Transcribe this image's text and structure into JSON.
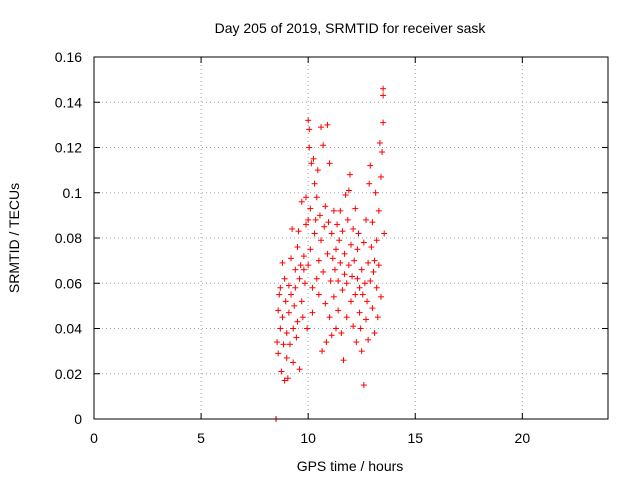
{
  "chart_data": {
    "type": "scatter",
    "title": "Day 205 of 2019, SRMTID for receiver sask",
    "xlabel": "GPS time / hours",
    "ylabel": "SRMTID / TECUs",
    "xlim": [
      0,
      24
    ],
    "ylim": [
      0,
      0.16
    ],
    "xticks": [
      0,
      5,
      10,
      15,
      20
    ],
    "yticks": [
      0,
      0.02,
      0.04,
      0.06,
      0.08,
      0.1,
      0.12,
      0.14,
      0.16
    ],
    "xtick_labels": [
      "0",
      "5",
      "10",
      "15",
      "20"
    ],
    "ytick_labels": [
      "0",
      "0.02",
      "0.04",
      "0.06",
      "0.08",
      "0.1",
      "0.12",
      "0.14",
      "0.16"
    ],
    "grid": true,
    "marker": "+",
    "color": "#ff0000",
    "series": [
      {
        "name": "SRMTID",
        "points": [
          [
            8.5,
            0.0
          ],
          [
            8.5,
            0.0
          ],
          [
            8.55,
            0.034
          ],
          [
            8.6,
            0.048
          ],
          [
            8.6,
            0.029
          ],
          [
            8.65,
            0.055
          ],
          [
            8.7,
            0.04
          ],
          [
            8.7,
            0.058
          ],
          [
            8.75,
            0.021
          ],
          [
            8.8,
            0.069
          ],
          [
            8.8,
            0.045
          ],
          [
            8.85,
            0.033
          ],
          [
            8.9,
            0.017
          ],
          [
            8.9,
            0.062
          ],
          [
            8.95,
            0.052
          ],
          [
            9.0,
            0.027
          ],
          [
            9.0,
            0.038
          ],
          [
            9.05,
            0.018
          ],
          [
            9.1,
            0.047
          ],
          [
            9.1,
            0.059
          ],
          [
            9.15,
            0.033
          ],
          [
            9.2,
            0.071
          ],
          [
            9.2,
            0.055
          ],
          [
            9.25,
            0.084
          ],
          [
            9.3,
            0.04
          ],
          [
            9.3,
            0.025
          ],
          [
            9.35,
            0.05
          ],
          [
            9.4,
            0.058
          ],
          [
            9.4,
            0.066
          ],
          [
            9.45,
            0.036
          ],
          [
            9.5,
            0.076
          ],
          [
            9.5,
            0.043
          ],
          [
            9.55,
            0.083
          ],
          [
            9.6,
            0.022
          ],
          [
            9.6,
            0.062
          ],
          [
            9.65,
            0.068
          ],
          [
            9.7,
            0.052
          ],
          [
            9.7,
            0.096
          ],
          [
            9.75,
            0.045
          ],
          [
            9.8,
            0.066
          ],
          [
            9.8,
            0.072
          ],
          [
            9.85,
            0.06
          ],
          [
            9.9,
            0.086
          ],
          [
            9.9,
            0.098
          ],
          [
            9.95,
            0.04
          ],
          [
            10.0,
            0.088
          ],
          [
            10.0,
            0.068
          ],
          [
            10.0,
            0.132
          ],
          [
            10.05,
            0.12
          ],
          [
            10.05,
            0.128
          ],
          [
            10.1,
            0.093
          ],
          [
            10.1,
            0.075
          ],
          [
            10.15,
            0.113
          ],
          [
            10.2,
            0.058
          ],
          [
            10.2,
            0.047
          ],
          [
            10.25,
            0.115
          ],
          [
            10.3,
            0.104
          ],
          [
            10.3,
            0.082
          ],
          [
            10.35,
            0.088
          ],
          [
            10.4,
            0.062
          ],
          [
            10.4,
            0.098
          ],
          [
            10.45,
            0.11
          ],
          [
            10.5,
            0.07
          ],
          [
            10.5,
            0.055
          ],
          [
            10.55,
            0.09
          ],
          [
            10.6,
            0.079
          ],
          [
            10.6,
            0.129
          ],
          [
            10.65,
            0.03
          ],
          [
            10.7,
            0.121
          ],
          [
            10.7,
            0.065
          ],
          [
            10.75,
            0.085
          ],
          [
            10.8,
            0.094
          ],
          [
            10.8,
            0.051
          ],
          [
            10.85,
            0.034
          ],
          [
            10.9,
            0.073
          ],
          [
            10.9,
            0.13
          ],
          [
            10.95,
            0.087
          ],
          [
            11.0,
            0.113
          ],
          [
            11.0,
            0.045
          ],
          [
            11.05,
            0.061
          ],
          [
            11.1,
            0.082
          ],
          [
            11.1,
            0.037
          ],
          [
            11.15,
            0.071
          ],
          [
            11.2,
            0.092
          ],
          [
            11.2,
            0.054
          ],
          [
            11.25,
            0.066
          ],
          [
            11.3,
            0.075
          ],
          [
            11.3,
            0.04
          ],
          [
            11.35,
            0.086
          ],
          [
            11.4,
            0.061
          ],
          [
            11.4,
            0.048
          ],
          [
            11.45,
            0.079
          ],
          [
            11.5,
            0.069
          ],
          [
            11.5,
            0.092
          ],
          [
            11.55,
            0.038
          ],
          [
            11.6,
            0.057
          ],
          [
            11.6,
            0.083
          ],
          [
            11.65,
            0.026
          ],
          [
            11.7,
            0.064
          ],
          [
            11.7,
            0.073
          ],
          [
            11.75,
            0.099
          ],
          [
            11.8,
            0.06
          ],
          [
            11.8,
            0.045
          ],
          [
            11.85,
            0.088
          ],
          [
            11.9,
            0.101
          ],
          [
            11.9,
            0.068
          ],
          [
            11.95,
            0.108
          ],
          [
            12.0,
            0.077
          ],
          [
            12.0,
            0.052
          ],
          [
            12.05,
            0.063
          ],
          [
            12.1,
            0.084
          ],
          [
            12.1,
            0.041
          ],
          [
            12.15,
            0.07
          ],
          [
            12.2,
            0.055
          ],
          [
            12.2,
            0.093
          ],
          [
            12.25,
            0.034
          ],
          [
            12.3,
            0.075
          ],
          [
            12.3,
            0.062
          ],
          [
            12.35,
            0.082
          ],
          [
            12.4,
            0.047
          ],
          [
            12.4,
            0.058
          ],
          [
            12.45,
            0.04
          ],
          [
            12.5,
            0.066
          ],
          [
            12.5,
            0.03
          ],
          [
            12.55,
            0.055
          ],
          [
            12.6,
            0.078
          ],
          [
            12.6,
            0.015
          ],
          [
            12.65,
            0.06
          ],
          [
            12.7,
            0.044
          ],
          [
            12.7,
            0.088
          ],
          [
            12.75,
            0.052
          ],
          [
            12.8,
            0.069
          ],
          [
            12.8,
            0.035
          ],
          [
            12.85,
            0.104
          ],
          [
            12.9,
            0.112
          ],
          [
            12.9,
            0.061
          ],
          [
            12.95,
            0.076
          ],
          [
            13.0,
            0.049
          ],
          [
            13.0,
            0.087
          ],
          [
            13.05,
            0.065
          ],
          [
            13.1,
            0.07
          ],
          [
            13.1,
            0.038
          ],
          [
            13.15,
            0.1
          ],
          [
            13.2,
            0.058
          ],
          [
            13.2,
            0.079
          ],
          [
            13.25,
            0.045
          ],
          [
            13.3,
            0.092
          ],
          [
            13.3,
            0.068
          ],
          [
            13.35,
            0.122
          ],
          [
            13.4,
            0.107
          ],
          [
            13.4,
            0.054
          ],
          [
            13.45,
            0.118
          ],
          [
            13.5,
            0.131
          ],
          [
            13.5,
            0.143
          ],
          [
            13.5,
            0.146
          ],
          [
            13.55,
            0.082
          ]
        ]
      }
    ]
  }
}
